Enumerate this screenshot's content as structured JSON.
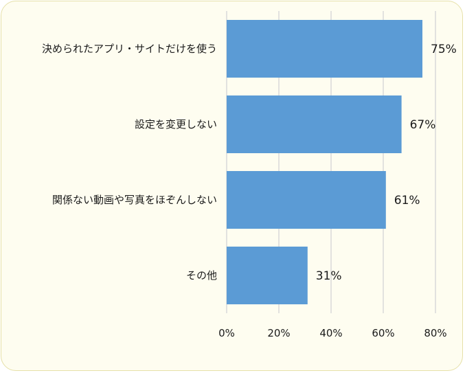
{
  "chart_data": {
    "type": "bar",
    "orientation": "horizontal",
    "categories": [
      "決められたアプリ・サイトだけを使う",
      "設定を変更しない",
      "関係ない動画や写真をほぞんしない",
      "その他"
    ],
    "values": [
      75,
      67,
      61,
      31
    ],
    "data_labels": [
      "75%",
      "67%",
      "61%",
      "31%"
    ],
    "x_ticks": [
      "0%",
      "20%",
      "40%",
      "60%",
      "80%"
    ],
    "xlim": [
      0,
      80
    ],
    "title": "",
    "xlabel": "",
    "ylabel": "",
    "grid": true,
    "legend": "none",
    "bar_color": "#5b9bd5",
    "grid_color": "#d9d9d9"
  }
}
